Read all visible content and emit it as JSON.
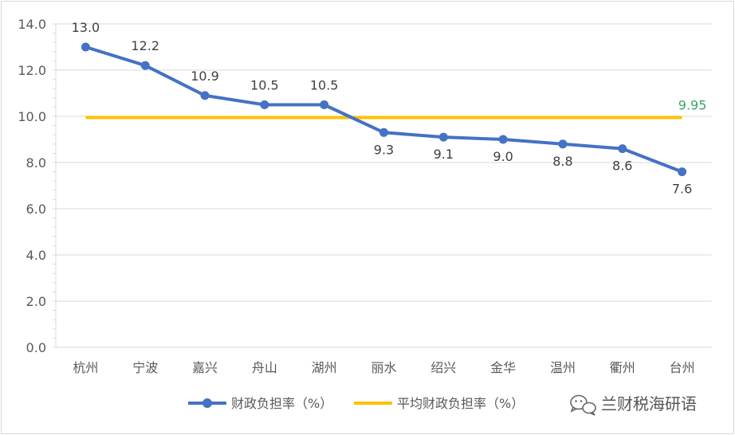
{
  "chart_data": {
    "type": "line",
    "categories": [
      "杭州",
      "宁波",
      "嘉兴",
      "舟山",
      "湖州",
      "丽水",
      "绍兴",
      "金华",
      "温州",
      "衢州",
      "台州"
    ],
    "series": [
      {
        "name": "财政负担率（%）",
        "values": [
          13.0,
          12.2,
          10.9,
          10.5,
          10.5,
          9.3,
          9.1,
          9.0,
          8.8,
          8.6,
          7.6
        ],
        "color": "#4472c4",
        "labels": [
          "13.0",
          "12.2",
          "10.9",
          "10.5",
          "10.5",
          "9.3",
          "9.1",
          "9.0",
          "8.8",
          "8.6",
          "7.6"
        ]
      },
      {
        "name": "平均财政负担率（%）",
        "values": [
          9.95,
          9.95,
          9.95,
          9.95,
          9.95,
          9.95,
          9.95,
          9.95,
          9.95,
          9.95,
          9.95
        ],
        "color": "#ffc000",
        "label": "9.95",
        "label_color": "#3aa85e"
      }
    ],
    "ylim": [
      0,
      14
    ],
    "yticks": [
      "0.0",
      "2.0",
      "4.0",
      "6.0",
      "8.0",
      "10.0",
      "12.0",
      "14.0"
    ],
    "grid": true,
    "legend": "bottom"
  },
  "watermark": "兰财税海研语",
  "icons": {
    "watermark": "wechat-icon"
  }
}
